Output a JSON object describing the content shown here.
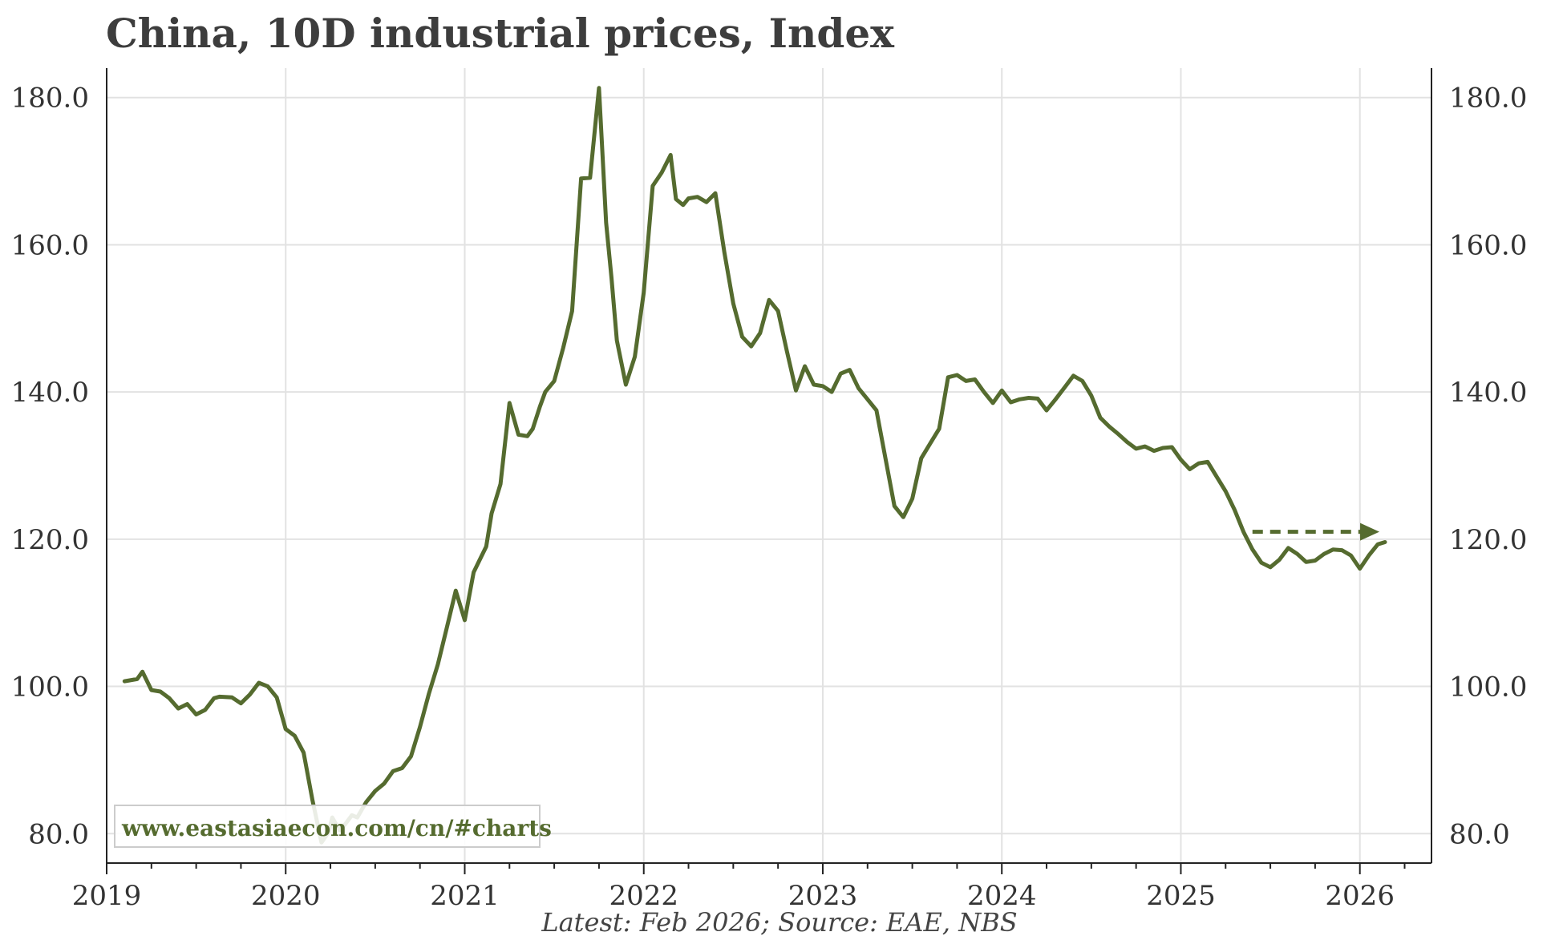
{
  "chart_data": {
    "type": "line",
    "title": "China, 10D industrial prices, Index",
    "source": "Latest: Feb 2026; Source: EAE, NBS",
    "watermark": "www.eastasiaecon.com/cn/#charts",
    "line_color": "#556b2f",
    "xlim": [
      2019.0,
      2026.4
    ],
    "ylim": [
      76,
      184
    ],
    "x_ticks": [
      2019,
      2020,
      2021,
      2022,
      2023,
      2024,
      2025,
      2026
    ],
    "x_tick_labels": [
      "2019",
      "2020",
      "2021",
      "2022",
      "2023",
      "2024",
      "2025",
      "2026"
    ],
    "y_ticks": [
      80,
      100,
      120,
      140,
      160,
      180
    ],
    "y_tick_labels": [
      "80.0",
      "100.0",
      "120.0",
      "140.0",
      "160.0",
      "180.0"
    ],
    "grid": true,
    "series": [
      {
        "x": [
          2019.1,
          2019.17,
          2019.2,
          2019.25,
          2019.3,
          2019.35,
          2019.4,
          2019.45,
          2019.5,
          2019.55,
          2019.6,
          2019.63,
          2019.7,
          2019.75,
          2019.8,
          2019.85,
          2019.9,
          2019.95,
          2020.0,
          2020.05,
          2020.1,
          2020.15,
          2020.2,
          2020.24,
          2020.26,
          2020.3,
          2020.33,
          2020.37,
          2020.4,
          2020.45,
          2020.5,
          2020.55,
          2020.6,
          2020.65,
          2020.7,
          2020.75,
          2020.8,
          2020.85,
          2020.9,
          2020.95,
          2021.0,
          2021.05,
          2021.08,
          2021.12,
          2021.15,
          2021.2,
          2021.25,
          2021.3,
          2021.35,
          2021.38,
          2021.42,
          2021.45,
          2021.5,
          2021.55,
          2021.6,
          2021.65,
          2021.7,
          2021.75,
          2021.79,
          2021.82,
          2021.85,
          2021.9,
          2021.95,
          2022.0,
          2022.05,
          2022.1,
          2022.15,
          2022.18,
          2022.22,
          2022.25,
          2022.3,
          2022.35,
          2022.4,
          2022.45,
          2022.5,
          2022.55,
          2022.6,
          2022.65,
          2022.7,
          2022.75,
          2022.8,
          2022.85,
          2022.9,
          2022.95,
          2023.0,
          2023.05,
          2023.1,
          2023.15,
          2023.2,
          2023.25,
          2023.3,
          2023.35,
          2023.4,
          2023.45,
          2023.5,
          2023.55,
          2023.6,
          2023.65,
          2023.7,
          2023.75,
          2023.8,
          2023.85,
          2023.9,
          2023.95,
          2024.0,
          2024.05,
          2024.1,
          2024.15,
          2024.2,
          2024.25,
          2024.3,
          2024.35,
          2024.4,
          2024.45,
          2024.5,
          2024.55,
          2024.6,
          2024.65,
          2024.7,
          2024.75,
          2024.8,
          2024.85,
          2024.9,
          2024.95,
          2025.0,
          2025.05,
          2025.1,
          2025.15,
          2025.2,
          2025.25,
          2025.3,
          2025.35,
          2025.4,
          2025.45,
          2025.5,
          2025.55,
          2025.6,
          2025.65,
          2025.7,
          2025.75,
          2025.8,
          2025.85,
          2025.9,
          2025.95,
          2026.0,
          2026.05,
          2026.1,
          2026.14
        ],
        "values": [
          100.7,
          101.0,
          102.0,
          99.5,
          99.3,
          98.4,
          97.0,
          97.6,
          96.2,
          96.8,
          98.4,
          98.6,
          98.5,
          97.7,
          98.9,
          100.5,
          100.0,
          98.5,
          94.2,
          93.3,
          91.0,
          84.5,
          78.8,
          80.2,
          82.2,
          80.5,
          81.2,
          82.5,
          82.2,
          84.3,
          85.8,
          86.8,
          88.5,
          88.9,
          90.5,
          94.5,
          99.0,
          103.0,
          108.0,
          113.0,
          109.0,
          115.5,
          117.0,
          119.0,
          123.5,
          127.5,
          138.5,
          134.2,
          134.0,
          135.0,
          138.0,
          140.0,
          141.5,
          146.0,
          151.0,
          169.0,
          169.1,
          181.3,
          163.0,
          155.5,
          147.0,
          141.0,
          144.8,
          153.5,
          168.0,
          169.8,
          172.2,
          166.2,
          165.4,
          166.3,
          166.5,
          165.8,
          167.0,
          159.0,
          152.0,
          147.5,
          146.2,
          148.0,
          152.5,
          151.0,
          145.5,
          140.2,
          143.5,
          141.0,
          140.8,
          140.0,
          142.5,
          143.0,
          140.5,
          139.0,
          137.5,
          131.0,
          124.5,
          123.0,
          125.5,
          131.0,
          133.0,
          135.0,
          142.0,
          142.3,
          141.5,
          141.7,
          140.0,
          138.5,
          140.2,
          138.6,
          139.0,
          139.2,
          139.1,
          137.5,
          139.0,
          140.6,
          142.2,
          141.5,
          139.5,
          136.5,
          135.3,
          134.3,
          133.2,
          132.3,
          132.6,
          132.0,
          132.4,
          132.5,
          130.8,
          129.5,
          130.3,
          130.5,
          128.5,
          126.5,
          124.0,
          121.0,
          118.6,
          116.8,
          116.2,
          117.2,
          118.8,
          118.0,
          116.9,
          117.1,
          118.0,
          118.6,
          118.5,
          117.8,
          116.0,
          117.8,
          119.3,
          119.6
        ]
      }
    ],
    "annotations": [
      {
        "type": "dashed-arrow",
        "x_start": 2025.4,
        "x_end": 2026.1,
        "y": 121.0
      }
    ]
  }
}
